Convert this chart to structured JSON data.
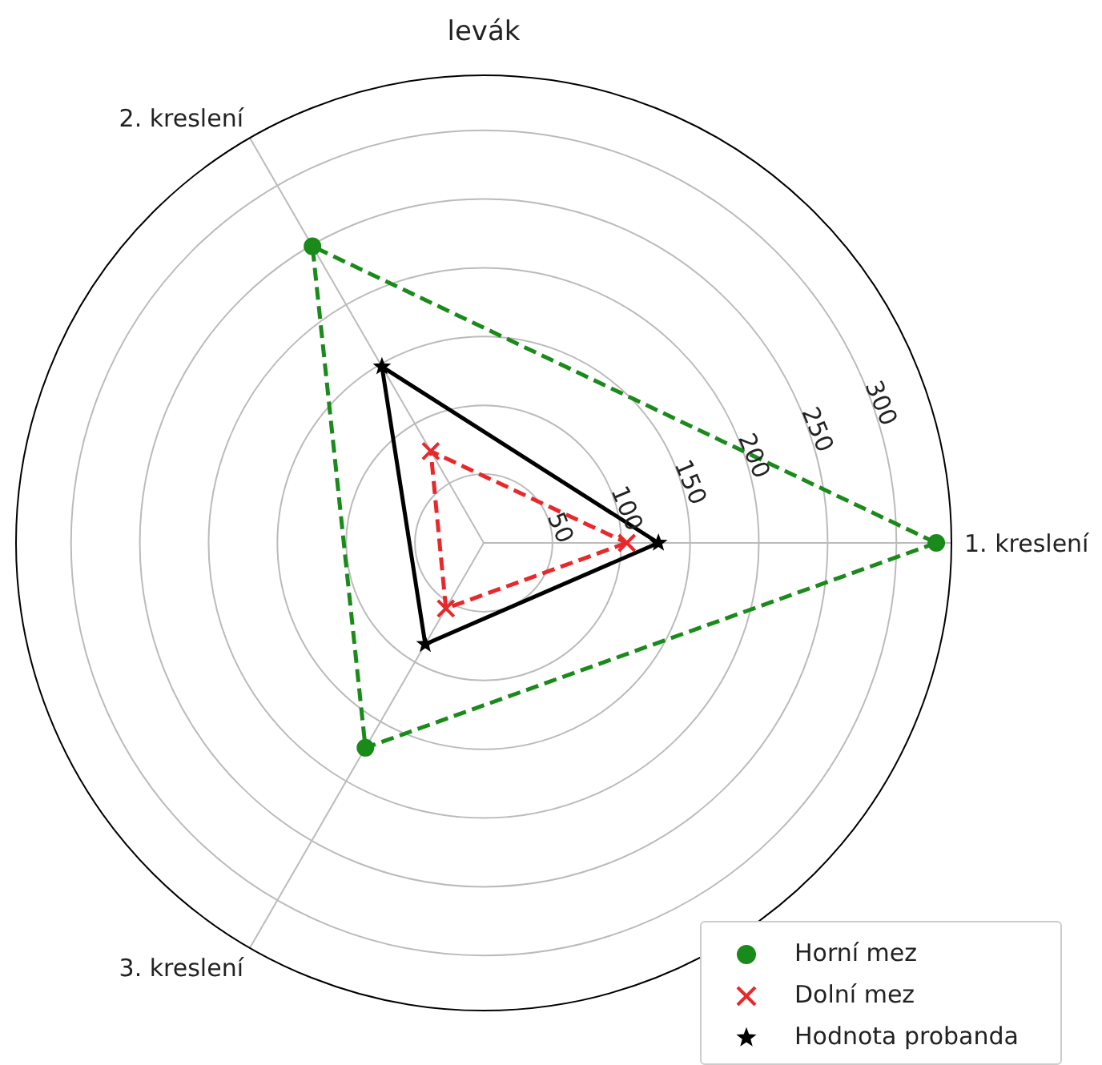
{
  "chart_data": {
    "type": "radar",
    "title": "levák",
    "categories": [
      "1. kreslení",
      "3. kreslení",
      "2. kreslení"
    ],
    "series": [
      {
        "name": "Horní mez",
        "color": "#1a8a1a",
        "values": [
          329,
          172,
          249
        ],
        "marker": "circle",
        "line_style": "dashed"
      },
      {
        "name": "Dolní mez",
        "color": "#e8282a",
        "values": [
          104,
          55,
          77
        ],
        "marker": "cross",
        "line_style": "dashed"
      },
      {
        "name": "Hodnota probanda",
        "color": "#000000",
        "values": [
          127,
          85,
          148
        ],
        "marker": "star",
        "line_style": "solid"
      }
    ],
    "ylim": [
      0,
      340
    ],
    "yticks": [
      50,
      100,
      150,
      200,
      250,
      300
    ],
    "grid": true,
    "legend": "bottom right"
  }
}
